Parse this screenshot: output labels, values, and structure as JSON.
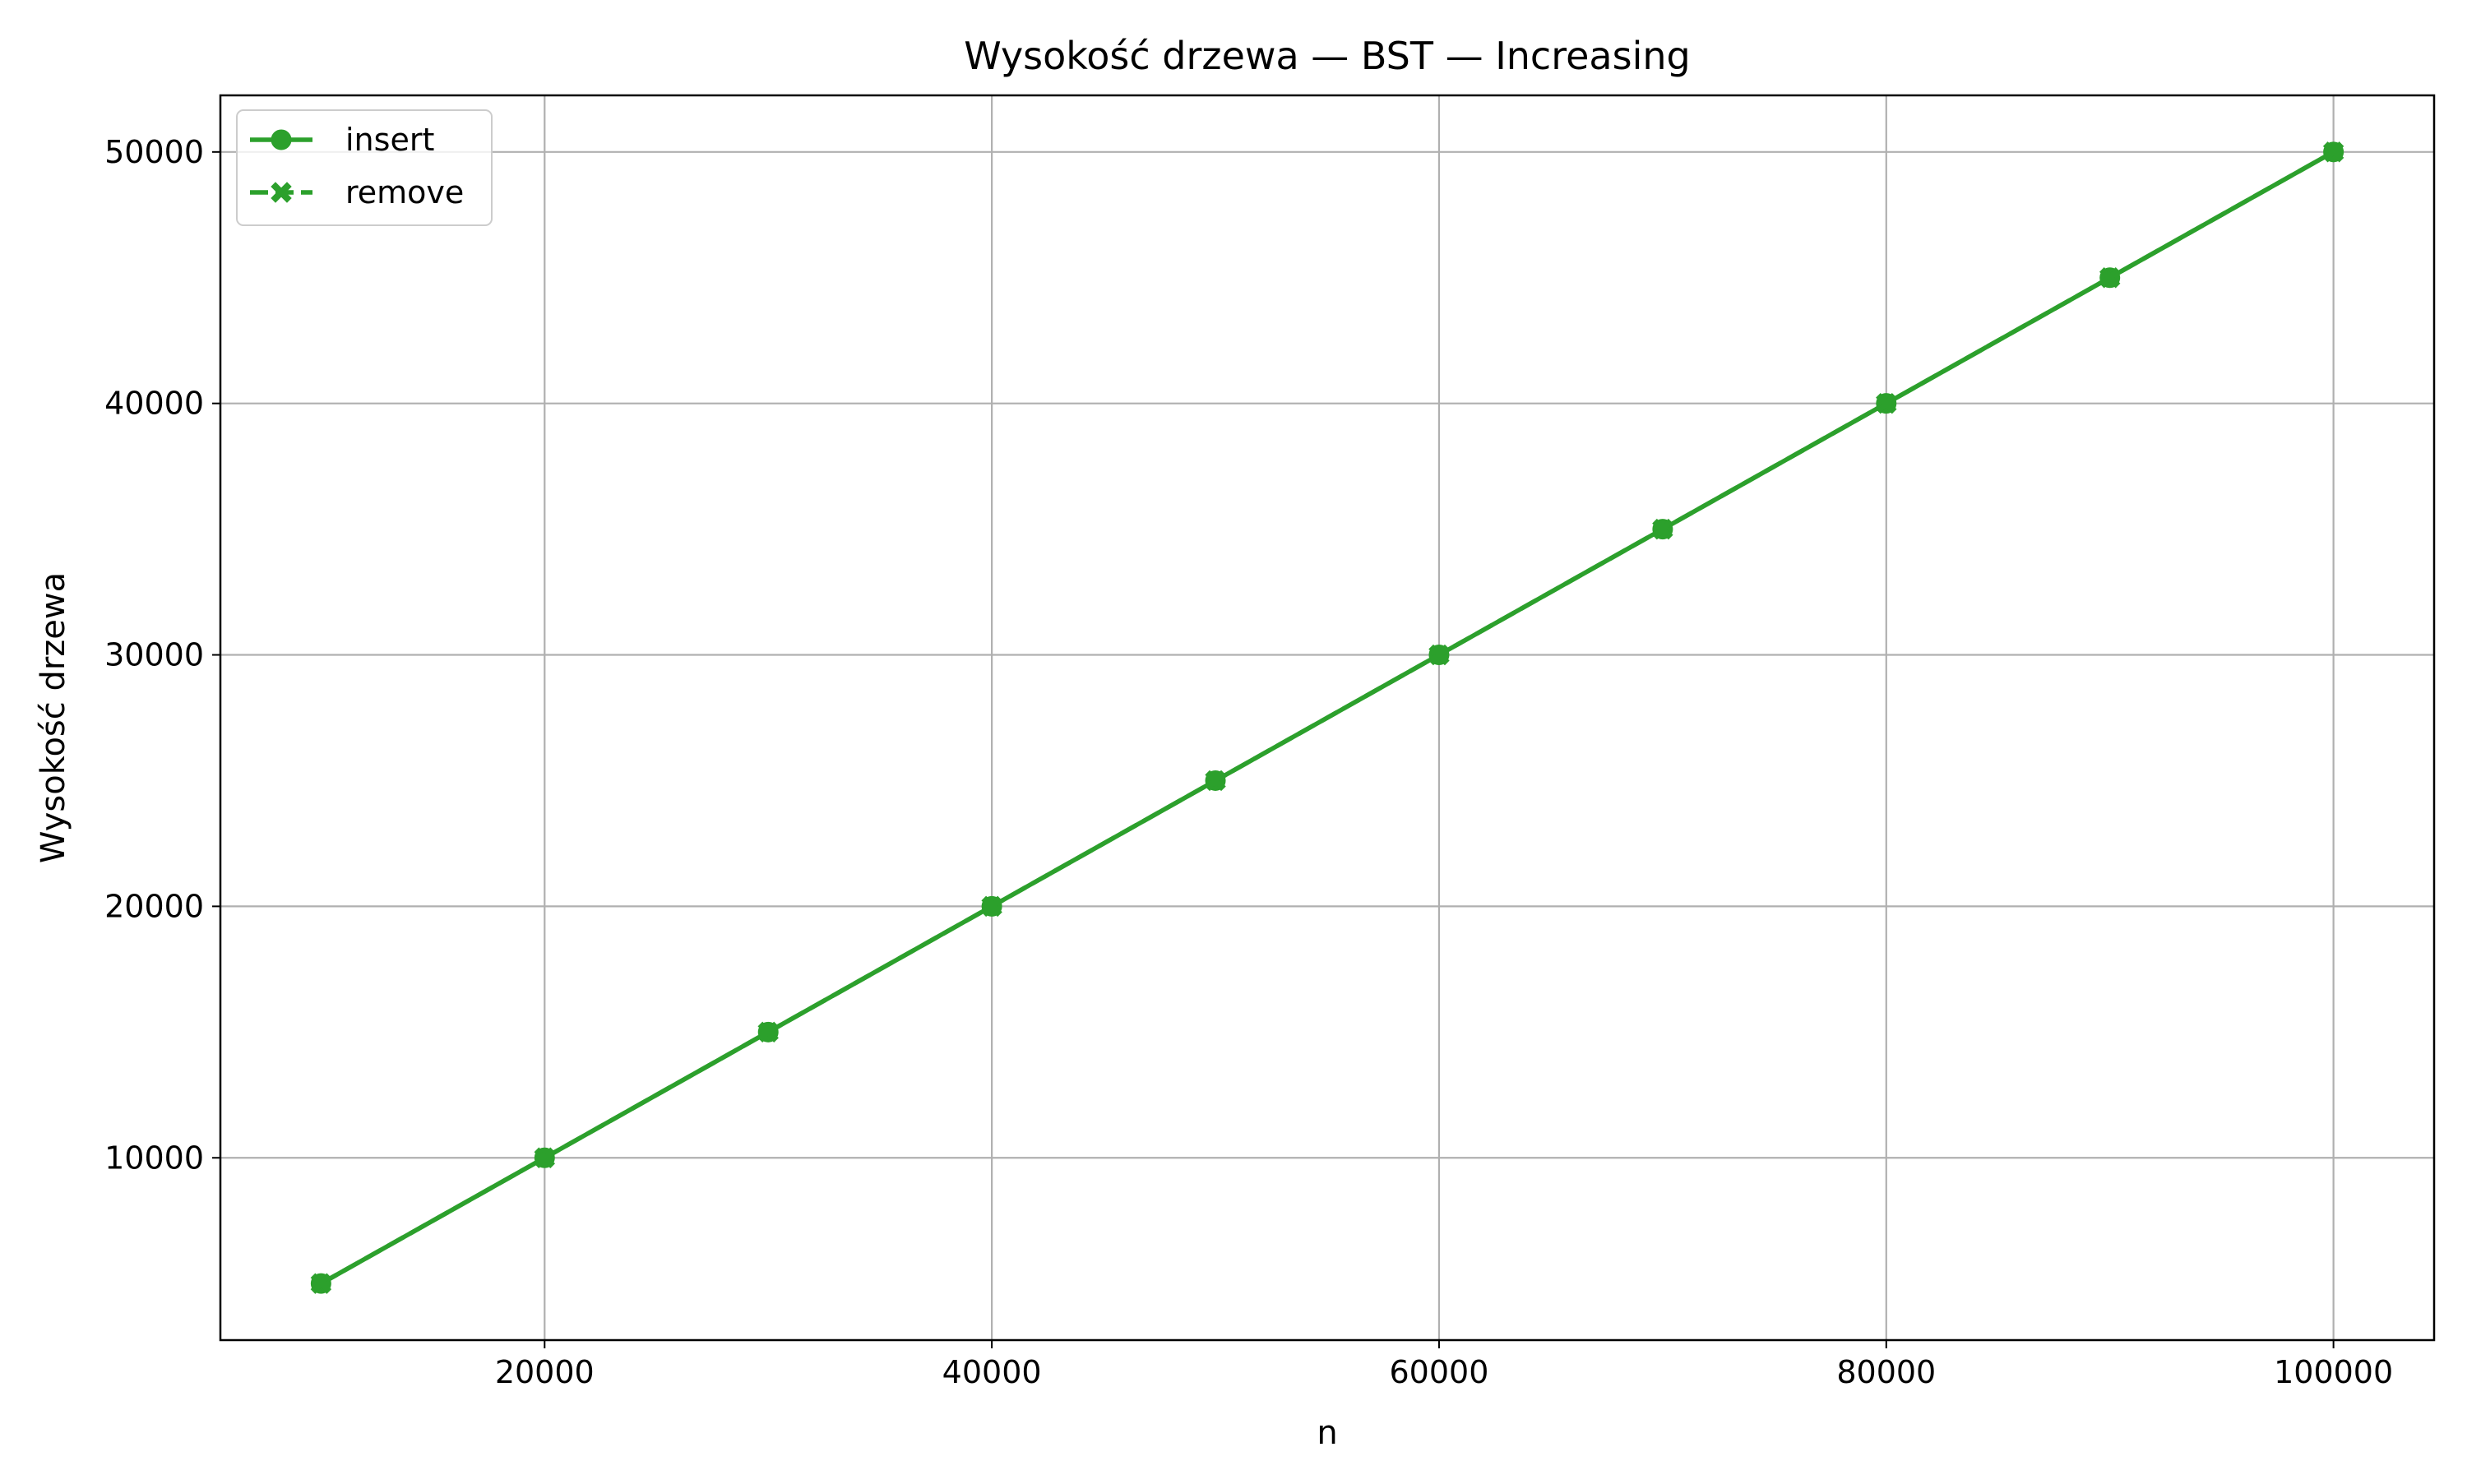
{
  "chart_data": {
    "type": "line",
    "title": "Wysokość drzewa — BST — Increasing",
    "xlabel": "n",
    "ylabel": "Wysokość drzewa",
    "x": [
      10000,
      20000,
      30000,
      40000,
      50000,
      60000,
      70000,
      80000,
      90000,
      100000
    ],
    "series": [
      {
        "name": "insert",
        "values": [
          5000,
          10000,
          15000,
          20000,
          25000,
          30000,
          35000,
          40000,
          45000,
          50000
        ],
        "marker": "circle",
        "line_style": "solid",
        "color": "#2ca02c"
      },
      {
        "name": "remove",
        "values": [
          5000,
          10000,
          15000,
          20000,
          25000,
          30000,
          35000,
          40000,
          45000,
          50000
        ],
        "marker": "x-filled",
        "line_style": "dashed",
        "color": "#2ca02c"
      }
    ],
    "xlim": [
      5500,
      104500
    ],
    "ylim": [
      2750,
      52250
    ],
    "xticks": [
      20000,
      40000,
      60000,
      80000,
      100000
    ],
    "yticks": [
      10000,
      20000,
      30000,
      40000,
      50000
    ],
    "grid": true,
    "legend_position": "top-left"
  }
}
